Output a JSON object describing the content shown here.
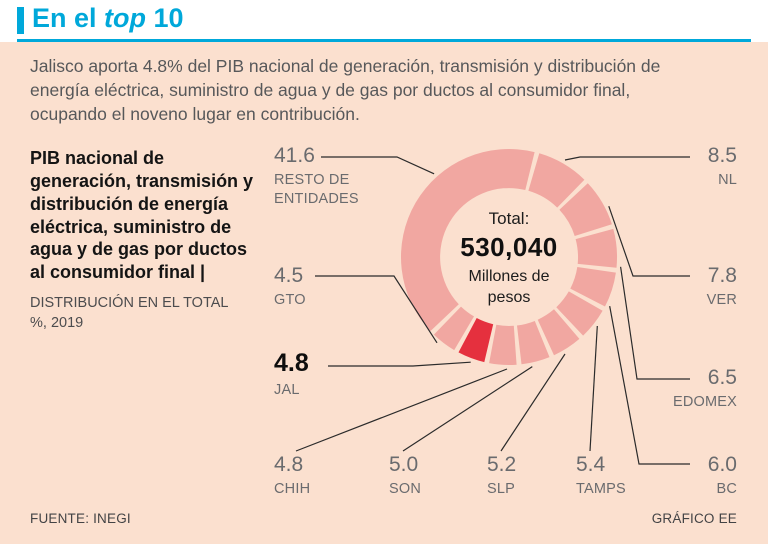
{
  "colors": {
    "accent_cyan": "#00a8da",
    "background": "#fbe0cf",
    "header_bg": "#ffffff",
    "segment_pink": "#f1a7a1",
    "highlight_red": "#e5303e",
    "text_gray": "#57585a",
    "label_gray": "#6a6b6e"
  },
  "header": {
    "title_pre": "En el ",
    "title_italic": "top",
    "title_post": " 10"
  },
  "intro": "Jalisco aporta 4.8% del PIB nacional de generación, transmisión y distribución de energía eléctrica, suministro de agua y de gas por ductos al consumidor final, ocupando el noveno lugar en contribución.",
  "left_panel": {
    "heading": "PIB nacional de generación, transmisión y distribución de energía eléctrica, suministro de agua y de gas por ductos al consumidor final |",
    "subheading": "DISTRIBUCIÓN EN EL TOTAL %, 2019"
  },
  "footer": {
    "source": "FUENTE: INEGI",
    "credit": "GRÁFICO EE"
  },
  "chart_data": {
    "type": "pie",
    "title": "PIB nacional de generación, transmisión y distribución de energía eléctrica, suministro de agua y de gas por ductos al consumidor final",
    "subtitle": "DISTRIBUCIÓN EN EL TOTAL %, 2019",
    "legend_position": "callouts",
    "center": {
      "label": "Total:",
      "value": "530,040",
      "unit": "Millones de pesos"
    },
    "segments": [
      {
        "label": "NL",
        "value": 8.5,
        "display": "8.5"
      },
      {
        "label": "VER",
        "value": 7.8,
        "display": "7.8"
      },
      {
        "label": "EDOMEX",
        "value": 6.5,
        "display": "6.5"
      },
      {
        "label": "BC",
        "value": 6.0,
        "display": "6.0"
      },
      {
        "label": "TAMPS",
        "value": 5.4,
        "display": "5.4"
      },
      {
        "label": "SLP",
        "value": 5.2,
        "display": "5.2"
      },
      {
        "label": "SON",
        "value": 5.0,
        "display": "5.0"
      },
      {
        "label": "CHIH",
        "value": 4.8,
        "display": "4.8"
      },
      {
        "label": "JAL",
        "value": 4.8,
        "display": "4.8",
        "highlight": true
      },
      {
        "label": "GTO",
        "value": 4.5,
        "display": "4.5"
      },
      {
        "label": "RESTO DE ENTIDADES",
        "value": 41.6,
        "display": "41.6"
      }
    ]
  }
}
